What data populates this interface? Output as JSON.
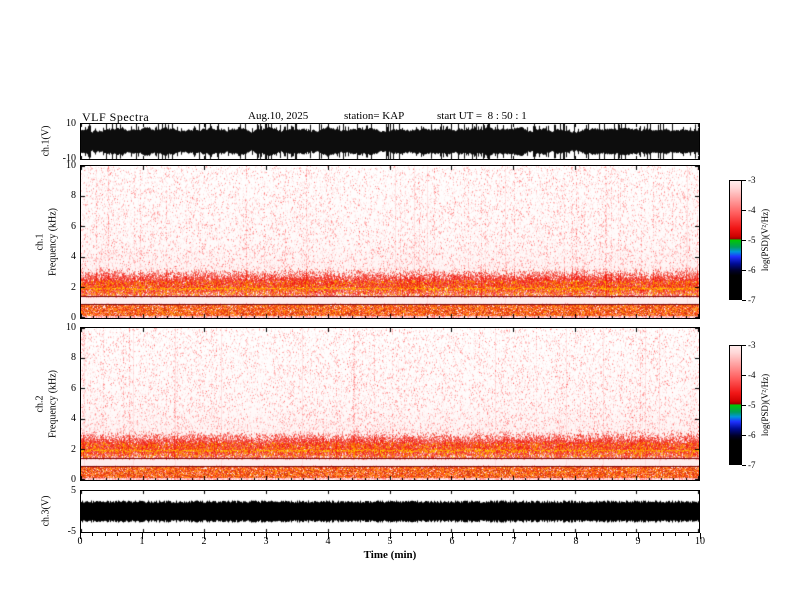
{
  "header": {
    "title": "VLF Spectra",
    "date": "Aug.10, 2025",
    "station": "station= KAP",
    "start_ut": "start UT =  8 : 50 : 1"
  },
  "xaxis": {
    "label": "Time (min)",
    "ticks": [
      "0",
      "1",
      "2",
      "3",
      "4",
      "5",
      "6",
      "7",
      "8",
      "9",
      "10"
    ],
    "range": [
      0,
      10
    ]
  },
  "panels": {
    "ch1_wave": {
      "name": "ch.1(V)",
      "ylim": [
        -10,
        10
      ],
      "yticks": [
        "10",
        "-10"
      ]
    },
    "ch1_spec": {
      "ch": "ch.1",
      "ylabel": "Frequency (kHz)",
      "ylim": [
        0,
        10
      ],
      "yticks": [
        "10",
        "8",
        "6",
        "4",
        "2",
        "0"
      ]
    },
    "ch2_spec": {
      "ch": "ch.2",
      "ylabel": "Frequency (kHz)",
      "ylim": [
        0,
        10
      ],
      "yticks": [
        "10",
        "8",
        "6",
        "4",
        "2",
        "0"
      ]
    },
    "ch3_wave": {
      "name": "ch.3(V)",
      "ylim": [
        -5,
        5
      ],
      "yticks": [
        "5",
        "-5"
      ]
    }
  },
  "colorbar": {
    "label": "log(PSD)(V²/Hz)",
    "ticks": [
      "-3",
      "-4",
      "-5",
      "-6",
      "-7"
    ],
    "range": [
      -3,
      -7
    ],
    "gradient": [
      [
        0,
        "#ffecec"
      ],
      [
        0.06,
        "#ffd6d6"
      ],
      [
        0.16,
        "#ff9e9e"
      ],
      [
        0.28,
        "#ff5a5a"
      ],
      [
        0.4,
        "#f01616"
      ],
      [
        0.47,
        "#cf0000"
      ],
      [
        0.49,
        "#9e0000"
      ],
      [
        0.5,
        "#00c800"
      ],
      [
        0.56,
        "#00a05a"
      ],
      [
        0.6,
        "#0096dc"
      ],
      [
        0.64,
        "#1e32ff"
      ],
      [
        0.7,
        "#000c96"
      ],
      [
        0.76,
        "#000028"
      ],
      [
        0.8,
        "#000000"
      ],
      [
        1,
        "#000000"
      ]
    ]
  },
  "chart_data": [
    {
      "type": "line",
      "id": "ch1_waveform",
      "ylabel": "ch.1(V)",
      "xlim": [
        0,
        10
      ],
      "ylim": [
        -10,
        10
      ],
      "summary": "Continuous broadband noise waveform filling roughly ±4 to ±10 V for the entire 10-minute record; appears as a solid ragged black band",
      "render": {
        "seed": 101,
        "env_min": 0.35,
        "env_max": 1.0,
        "spike_p": 0.25
      }
    },
    {
      "type": "heatmap",
      "id": "ch1_spectrogram",
      "xlabel": "Time (min)",
      "ylabel": "ch.1 Frequency (kHz)",
      "xlim": [
        0,
        10
      ],
      "ylim": [
        0,
        10
      ],
      "zlabel": "log(PSD)(V²/Hz)",
      "zlim": [
        -7,
        -3
      ],
      "bands": [
        {
          "f_khz": [
            0.05,
            0.85
          ],
          "level": "very strong (≈ -3)",
          "appearance": "dense red/orange strip"
        },
        {
          "f_khz": [
            0.92,
            1.33
          ],
          "level": "quiet (≈ -7)",
          "appearance": "white gap bounded by dark red lines"
        },
        {
          "f_khz": [
            1.4,
            3.8
          ],
          "level": "strong (≈ -3.5)",
          "appearance": "broad red band peaking near 2 kHz"
        },
        {
          "f_khz": [
            1.5,
            2.4
          ],
          "level": "strongest (> -3)",
          "appearance": "orange/yellow speckled line near 1.9 kHz"
        },
        {
          "f_khz": [
            4,
            10
          ],
          "level": "weak (≈ -5 to -6)",
          "appearance": "pink haze with vertical sferic streaks"
        }
      ],
      "render": {
        "seed": 202,
        "bg_dots": 55,
        "band_dots": 45,
        "band_center": 2.15,
        "band_sigma": 0.75,
        "gap": [
          0.92,
          1.33
        ],
        "strip": [
          0.08,
          0.82
        ],
        "hlines": [
          {
            "f": 0.88,
            "color": "#7a0000"
          },
          {
            "f": 1.36,
            "color": "#7a0000"
          }
        ],
        "bright_line": {
          "f": 1.9,
          "p": 0.92
        },
        "streak_p": 0.045,
        "warm_colors": [
          "#ff9100",
          "#ffb300",
          "#ff6d00",
          "#ffd000"
        ],
        "strip_colors": [
          "#ff3d00",
          "#ff6d00",
          "#e53000",
          "#ff9100",
          "#c62800",
          "#ff8a65"
        ]
      }
    },
    {
      "type": "heatmap",
      "id": "ch2_spectrogram",
      "xlabel": "Time (min)",
      "ylabel": "ch.2 Frequency (kHz)",
      "xlim": [
        0,
        10
      ],
      "ylim": [
        0,
        10
      ],
      "zlabel": "log(PSD)(V²/Hz)",
      "zlim": [
        -7,
        -3
      ],
      "bands": [
        {
          "f_khz": [
            0.05,
            0.85
          ],
          "level": "very strong (≈ -3)",
          "appearance": "dense red/orange strip"
        },
        {
          "f_khz": [
            0.92,
            1.33
          ],
          "level": "quiet (≈ -7)",
          "appearance": "white gap bounded by dark red lines"
        },
        {
          "f_khz": [
            1.4,
            3.8
          ],
          "level": "strong (≈ -3.5)",
          "appearance": "broad red band peaking near 2 kHz"
        },
        {
          "f_khz": [
            1.5,
            2.4
          ],
          "level": "strongest (> -3)",
          "appearance": "orange/yellow speckled line near 1.9 kHz"
        },
        {
          "f_khz": [
            4,
            10
          ],
          "level": "weak (≈ -5 to -6)",
          "appearance": "pink haze with vertical sferic streaks"
        }
      ],
      "render": {
        "seed": 303,
        "bg_dots": 55,
        "band_dots": 45,
        "band_center": 2.1,
        "band_sigma": 0.75,
        "gap": [
          0.92,
          1.33
        ],
        "strip": [
          0.08,
          0.82
        ],
        "hlines": [
          {
            "f": 0.88,
            "color": "#7a0000"
          },
          {
            "f": 1.36,
            "color": "#7a0000"
          }
        ],
        "bright_line": {
          "f": 1.9,
          "p": 0.92
        },
        "streak_p": 0.045,
        "warm_colors": [
          "#ff9100",
          "#ffb300",
          "#ff6d00",
          "#ffd000"
        ],
        "strip_colors": [
          "#ff3d00",
          "#ff6d00",
          "#e53000",
          "#ff9100",
          "#c62800",
          "#ff8a65"
        ]
      }
    },
    {
      "type": "line",
      "id": "ch3_waveform",
      "ylabel": "ch.3(V)",
      "xlim": [
        0,
        10
      ],
      "ylim": [
        -5,
        5
      ],
      "summary": "Flat saturated signal: solid black band of roughly ±1 V around zero for the whole record",
      "render": {
        "seed": 404,
        "amp": 0.21,
        "jitter": 0.06
      }
    }
  ]
}
